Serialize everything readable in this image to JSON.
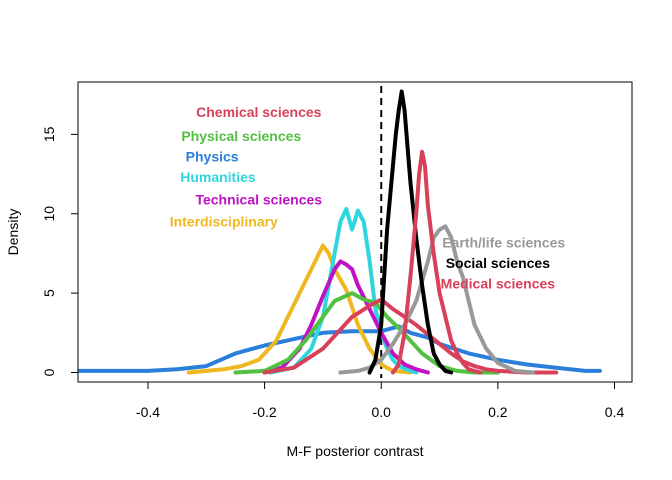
{
  "chart_data": {
    "type": "line",
    "title": "",
    "xlabel": "M-F posterior contrast",
    "ylabel": "Density",
    "xlim": [
      -0.52,
      0.43
    ],
    "ylim": [
      -0.6,
      18.3
    ],
    "x_ticks": [
      "-0.4",
      "-0.2",
      "0.0",
      "0.2",
      "0.4"
    ],
    "x_tick_values": [
      -0.4,
      -0.2,
      0.0,
      0.2,
      0.4
    ],
    "y_ticks": [
      "0",
      "5",
      "10",
      "15"
    ],
    "y_tick_values": [
      0,
      5,
      10,
      15
    ],
    "reference_line": {
      "x": 0.0,
      "style": "dashed",
      "color": "#000000"
    },
    "grid": false,
    "series": [
      {
        "name": "Physics",
        "color": "#2a7fdb",
        "x": [
          -0.52,
          -0.45,
          -0.4,
          -0.35,
          -0.3,
          -0.25,
          -0.2,
          -0.15,
          -0.1,
          -0.05,
          0.0,
          0.03,
          0.05,
          0.08,
          0.1,
          0.15,
          0.2,
          0.25,
          0.3,
          0.35,
          0.375
        ],
        "y": [
          0.1,
          0.1,
          0.1,
          0.2,
          0.4,
          1.2,
          1.7,
          2.1,
          2.5,
          2.6,
          2.6,
          2.9,
          2.5,
          2.2,
          1.8,
          1.2,
          0.8,
          0.5,
          0.3,
          0.1,
          0.1
        ]
      },
      {
        "name": "Interdisciplinary",
        "color": "#f0b820",
        "x": [
          -0.33,
          -0.3,
          -0.27,
          -0.24,
          -0.21,
          -0.18,
          -0.16,
          -0.14,
          -0.12,
          -0.1,
          -0.09,
          -0.08,
          -0.06,
          -0.04,
          -0.02,
          0.0,
          0.02,
          0.05
        ],
        "y": [
          0.0,
          0.1,
          0.2,
          0.4,
          0.8,
          2.0,
          3.5,
          5.0,
          6.5,
          8.0,
          7.5,
          6.5,
          5.2,
          3.0,
          1.5,
          0.5,
          0.1,
          0.0
        ]
      },
      {
        "name": "Humanities",
        "color": "#2fd6dc",
        "x": [
          -0.19,
          -0.15,
          -0.12,
          -0.1,
          -0.09,
          -0.08,
          -0.07,
          -0.06,
          -0.05,
          -0.04,
          -0.03,
          -0.02,
          -0.01,
          0.0,
          0.01,
          0.02,
          0.03,
          0.05,
          0.06
        ],
        "y": [
          0.0,
          0.3,
          1.5,
          3.5,
          5.5,
          7.5,
          9.5,
          10.3,
          9.0,
          10.2,
          9.5,
          7.0,
          4.0,
          2.5,
          1.5,
          0.8,
          0.4,
          0.1,
          0.0
        ]
      },
      {
        "name": "Technical sciences",
        "color": "#bf12c4",
        "x": [
          -0.2,
          -0.17,
          -0.14,
          -0.12,
          -0.1,
          -0.08,
          -0.07,
          -0.06,
          -0.05,
          -0.04,
          -0.02,
          0.0,
          0.02,
          0.04,
          0.06,
          0.08
        ],
        "y": [
          0.0,
          0.3,
          1.5,
          3.0,
          4.8,
          6.5,
          7.0,
          6.8,
          6.5,
          5.5,
          4.0,
          2.5,
          1.2,
          0.5,
          0.2,
          0.0
        ]
      },
      {
        "name": "Physical sciences",
        "color": "#52c040",
        "x": [
          -0.25,
          -0.2,
          -0.16,
          -0.13,
          -0.1,
          -0.08,
          -0.05,
          -0.03,
          -0.01,
          0.01,
          0.03,
          0.05,
          0.07,
          0.1,
          0.13,
          0.16,
          0.2
        ],
        "y": [
          0.0,
          0.1,
          0.8,
          2.0,
          3.5,
          4.5,
          5.0,
          4.6,
          4.4,
          3.5,
          2.8,
          2.0,
          1.2,
          0.4,
          0.1,
          0.0,
          0.0
        ]
      },
      {
        "name": "Chemical sciences",
        "color": "#d9405a",
        "x": [
          -0.2,
          -0.15,
          -0.1,
          -0.05,
          -0.02,
          0.0,
          0.02,
          0.04,
          0.06,
          0.08,
          0.1,
          0.12,
          0.14,
          0.16,
          0.18,
          0.2,
          0.25,
          0.3
        ],
        "y": [
          0.0,
          0.3,
          1.5,
          3.5,
          4.2,
          4.6,
          4.0,
          3.5,
          3.0,
          2.4,
          1.8,
          1.2,
          0.7,
          0.4,
          0.2,
          0.1,
          0.0,
          0.0
        ]
      },
      {
        "name": "Earth/life sciences",
        "color": "#999999",
        "x": [
          -0.07,
          -0.04,
          -0.02,
          0.0,
          0.02,
          0.04,
          0.06,
          0.08,
          0.09,
          0.1,
          0.11,
          0.12,
          0.13,
          0.14,
          0.15,
          0.16,
          0.18,
          0.2,
          0.23,
          0.26
        ],
        "y": [
          0.0,
          0.1,
          0.3,
          0.8,
          1.8,
          3.0,
          4.5,
          7.0,
          8.5,
          9.0,
          9.2,
          8.5,
          7.0,
          6.0,
          4.5,
          3.0,
          1.5,
          0.6,
          0.1,
          0.0
        ]
      },
      {
        "name": "Social sciences",
        "color": "#000000",
        "x": [
          -0.02,
          -0.01,
          0.0,
          0.01,
          0.02,
          0.025,
          0.03,
          0.035,
          0.04,
          0.05,
          0.06,
          0.07,
          0.08,
          0.09,
          0.1,
          0.11,
          0.12
        ],
        "y": [
          0.0,
          0.8,
          3.0,
          9.0,
          13.0,
          15.0,
          16.5,
          17.7,
          16.5,
          12.0,
          8.5,
          5.5,
          3.0,
          1.2,
          0.5,
          0.1,
          0.0
        ]
      },
      {
        "name": "Medical sciences",
        "color": "#d9405a",
        "x": [
          0.02,
          0.03,
          0.04,
          0.05,
          0.06,
          0.065,
          0.07,
          0.075,
          0.08,
          0.09,
          0.1,
          0.11,
          0.12,
          0.13,
          0.14,
          0.15,
          0.16,
          0.17
        ],
        "y": [
          0.0,
          0.5,
          2.5,
          6.0,
          10.0,
          12.5,
          13.9,
          13.0,
          10.5,
          7.5,
          5.0,
          3.5,
          2.0,
          1.2,
          0.6,
          0.2,
          0.1,
          0.0
        ]
      }
    ],
    "annotations": [
      {
        "text": "Chemical sciences",
        "color": "#d9405a",
        "x": -0.21,
        "y": 16.4
      },
      {
        "text": "Physical sciences",
        "color": "#52c040",
        "x": -0.24,
        "y": 14.9
      },
      {
        "text": "Physics",
        "color": "#2a7fdb",
        "x": -0.29,
        "y": 13.6
      },
      {
        "text": "Humanities",
        "color": "#2fd6dc",
        "x": -0.28,
        "y": 12.3
      },
      {
        "text": "Technical sciences",
        "color": "#bf12c4",
        "x": -0.21,
        "y": 10.9
      },
      {
        "text": "Interdisciplinary",
        "color": "#f0b820",
        "x": -0.27,
        "y": 9.5
      },
      {
        "text": "Earth/life sciences",
        "color": "#999999",
        "x": 0.21,
        "y": 8.2
      },
      {
        "text": "Social sciences",
        "color": "#000000",
        "x": 0.2,
        "y": 6.9
      },
      {
        "text": "Medical sciences",
        "color": "#d9405a",
        "x": 0.2,
        "y": 5.6
      }
    ]
  }
}
